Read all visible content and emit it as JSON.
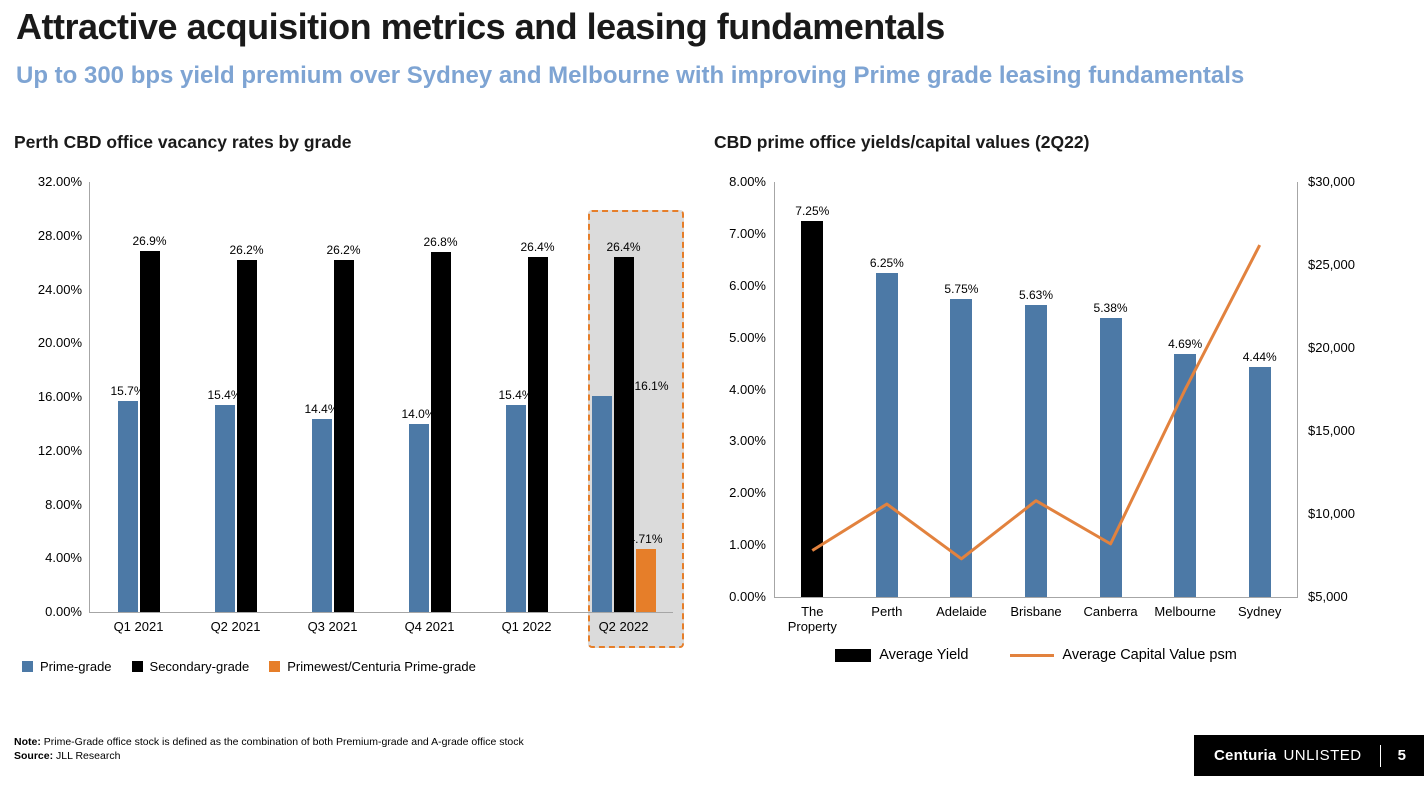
{
  "slide": {
    "title": "Attractive acquisition metrics and leasing fundamentals",
    "subtitle": "Up to 300 bps yield premium over Sydney and Melbourne with improving Prime grade leasing fundamentals"
  },
  "footer": {
    "note_label": "Note:",
    "note_text": " Prime-Grade office stock is defined as the combination of both Premium-grade and A-grade office stock",
    "source_label": "Source:",
    "source_text": " JLL Research",
    "brand": "Centuria",
    "brand_suffix": "UNLISTED",
    "page_number": "5"
  },
  "colors": {
    "prime_blue": "#4c79a6",
    "secondary_black": "#000000",
    "accent_orange": "#e67e29",
    "line_orange": "#e2823e",
    "subtitle_blue": "#7ea4d3",
    "highlight_fill": "#dbdbdb"
  },
  "chart_data": [
    {
      "type": "bar",
      "title": "Perth CBD office vacancy rates by grade",
      "categories": [
        "Q1 2021",
        "Q2 2021",
        "Q3 2021",
        "Q4 2021",
        "Q1 2022",
        "Q2 2022"
      ],
      "series": [
        {
          "name": "Prime-grade",
          "color": "#4c79a6",
          "values": [
            15.7,
            15.4,
            14.4,
            14.0,
            15.4,
            16.1
          ],
          "labels": [
            "15.7%",
            "15.4%",
            "14.4%",
            "14.0%",
            "15.4%",
            "16.1%"
          ]
        },
        {
          "name": "Secondary-grade",
          "color": "#000000",
          "values": [
            26.9,
            26.2,
            26.2,
            26.8,
            26.4,
            26.4
          ],
          "labels": [
            "26.9%",
            "26.2%",
            "26.2%",
            "26.8%",
            "26.4%",
            "26.4%"
          ]
        },
        {
          "name": "Primewest/Centuria Prime-grade",
          "color": "#e67e29",
          "values": [
            null,
            null,
            null,
            null,
            null,
            4.71
          ],
          "labels": [
            null,
            null,
            null,
            null,
            null,
            "4.71%"
          ]
        }
      ],
      "ylim": [
        0,
        32
      ],
      "ytick_step": 4,
      "ytick_labels": [
        "0.00%",
        "4.00%",
        "8.00%",
        "12.00%",
        "16.00%",
        "20.00%",
        "24.00%",
        "28.00%",
        "32.00%"
      ],
      "highlight_category": "Q2 2022",
      "grid": false,
      "legend_position": "bottom"
    },
    {
      "type": "bar+line",
      "title": "CBD prime office yields/capital values (2Q22)",
      "categories": [
        "The Property",
        "Perth",
        "Adelaide",
        "Brisbane",
        "Canberra",
        "Melbourne",
        "Sydney"
      ],
      "bar_series": {
        "name": "Average Yield",
        "axis": "left",
        "values": [
          7.25,
          6.25,
          5.75,
          5.63,
          5.38,
          4.69,
          4.44
        ],
        "labels": [
          "7.25%",
          "6.25%",
          "5.75%",
          "5.63%",
          "5.38%",
          "4.69%",
          "4.44%"
        ],
        "colors": [
          "#000000",
          "#4c79a6",
          "#4c79a6",
          "#4c79a6",
          "#4c79a6",
          "#4c79a6",
          "#4c79a6"
        ]
      },
      "line_series": {
        "name": "Average Capital Value psm",
        "axis": "right",
        "color": "#e2823e",
        "values": [
          7800,
          10600,
          7300,
          10800,
          8200,
          17500,
          26200
        ]
      },
      "y_left": {
        "min": 0,
        "max": 8,
        "tick_labels": [
          "0.00%",
          "1.00%",
          "2.00%",
          "3.00%",
          "4.00%",
          "5.00%",
          "6.00%",
          "7.00%",
          "8.00%"
        ]
      },
      "y_right": {
        "min": 5000,
        "max": 30000,
        "tick_labels": [
          "$5,000",
          "$10,000",
          "$15,000",
          "$20,000",
          "$25,000",
          "$30,000"
        ]
      },
      "grid": false,
      "legend_position": "bottom"
    }
  ]
}
